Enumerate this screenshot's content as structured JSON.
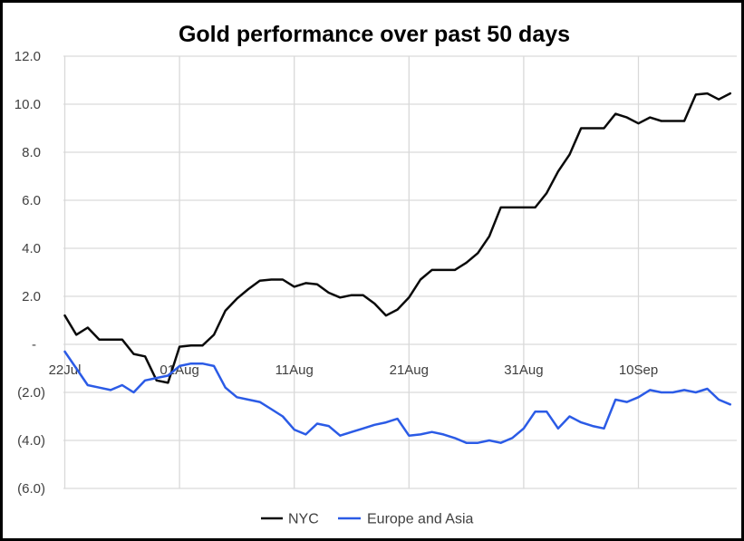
{
  "colors": {
    "background": "#ffffff",
    "border": "#000000",
    "gridline": "#d9d9d9",
    "tick_text": "#404040",
    "title_text": "#000000",
    "nyc_line": "#0a0a0a",
    "europe_asia_line": "#2b5be6"
  },
  "legend": {
    "items": [
      {
        "label": "NYC"
      },
      {
        "label": "Europe and Asia"
      }
    ]
  },
  "chart_data": {
    "type": "line",
    "title": "Gold performance over past 50 days",
    "xlabel": "",
    "ylabel": "",
    "grid": true,
    "legend_position": "bottom",
    "x_axis": {
      "tick_labels": [
        "22Jul",
        "01Aug",
        "11Aug",
        "21Aug",
        "31Aug",
        "10Sep"
      ],
      "tick_point_indices": [
        0,
        10,
        20,
        30,
        40,
        50
      ],
      "points_per_series": 59
    },
    "y_axis": {
      "tick_labels": [
        "12.0",
        "10.0",
        "8.0",
        "6.0",
        "4.0",
        "2.0",
        "-",
        "(2.0)",
        "(4.0)",
        "(6.0)"
      ],
      "tick_values": [
        12,
        10,
        8,
        6,
        4,
        2,
        0,
        -2,
        -4,
        -6
      ],
      "range": [
        -6,
        12
      ],
      "negative_format": "parentheses"
    },
    "series": [
      {
        "name": "NYC",
        "color": "#0a0a0a",
        "values": [
          1.2,
          0.4,
          0.7,
          0.2,
          0.2,
          0.2,
          -0.4,
          -0.5,
          -1.5,
          -1.6,
          -0.1,
          -0.05,
          -0.05,
          0.4,
          1.4,
          1.9,
          2.3,
          2.65,
          2.7,
          2.7,
          2.4,
          2.55,
          2.5,
          2.15,
          1.95,
          2.05,
          2.05,
          1.7,
          1.2,
          1.45,
          1.95,
          2.7,
          3.1,
          3.1,
          3.1,
          3.4,
          3.8,
          4.5,
          5.7,
          5.7,
          5.7,
          5.7,
          6.3,
          7.2,
          7.9,
          9.0,
          9.0,
          9.0,
          9.6,
          9.45,
          9.2,
          9.45,
          9.3,
          9.3,
          9.3,
          10.4,
          10.45,
          10.2,
          10.45
        ]
      },
      {
        "name": "Europe and Asia",
        "color": "#2b5be6",
        "values": [
          -0.3,
          -1.0,
          -1.7,
          -1.8,
          -1.9,
          -1.7,
          -2.0,
          -1.5,
          -1.4,
          -1.3,
          -0.9,
          -0.8,
          -0.8,
          -0.9,
          -1.8,
          -2.2,
          -2.3,
          -2.4,
          -2.7,
          -3.0,
          -3.55,
          -3.75,
          -3.3,
          -3.4,
          -3.8,
          -3.65,
          -3.5,
          -3.35,
          -3.25,
          -3.1,
          -3.8,
          -3.75,
          -3.65,
          -3.75,
          -3.9,
          -4.1,
          -4.1,
          -4.0,
          -4.1,
          -3.9,
          -3.5,
          -2.8,
          -2.8,
          -3.5,
          -3.0,
          -3.25,
          -3.4,
          -3.5,
          -2.3,
          -2.4,
          -2.2,
          -1.9,
          -2.0,
          -2.0,
          -1.9,
          -2.0,
          -1.85,
          -2.3,
          -2.5
        ]
      }
    ]
  }
}
